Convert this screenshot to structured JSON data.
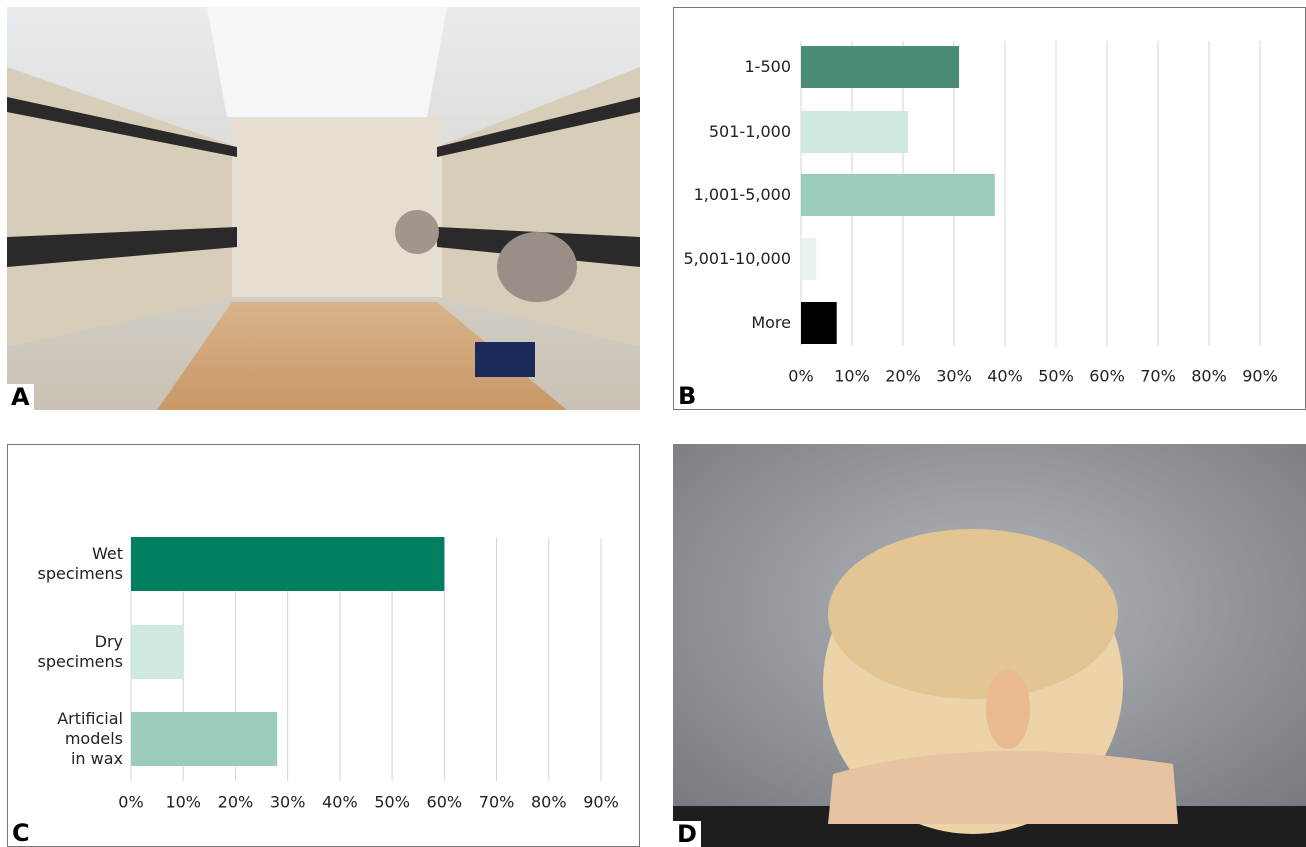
{
  "panel_labels": [
    "A",
    "B",
    "C",
    "D"
  ],
  "chart_data": [
    {
      "type": "bar",
      "orientation": "horizontal",
      "categories": [
        "1-500",
        "501-1,000",
        "1,001-5,000",
        "5,001-10,000",
        "More"
      ],
      "values": [
        31,
        21,
        38,
        3,
        7
      ],
      "colors": [
        "#4a8c75",
        "#cde9e2",
        "#9bcbb9",
        "#e5f2ef",
        "#000000"
      ],
      "xlim": [
        0,
        90
      ],
      "xticks": [
        {
          "value": 0,
          "label": "0%"
        },
        {
          "value": 10,
          "label": "10%"
        },
        {
          "value": 20,
          "label": "20%"
        },
        {
          "value": 30,
          "label": "30%"
        },
        {
          "value": 40,
          "label": "40%"
        },
        {
          "value": 50,
          "label": "50%"
        },
        {
          "value": 60,
          "label": "60%"
        },
        {
          "value": 70,
          "label": "70%"
        },
        {
          "value": 80,
          "label": "80%"
        },
        {
          "value": 90,
          "label": "90%"
        }
      ],
      "grid": true
    },
    {
      "type": "bar",
      "orientation": "horizontal",
      "categories": [
        "Wet\nspecimens",
        "Dry\nspecimens",
        "Artificial\nmodels\nin wax"
      ],
      "values": [
        60,
        10,
        28
      ],
      "colors": [
        "#007f5f",
        "#cde9e2",
        "#9bcbb9"
      ],
      "xlim": [
        0,
        90
      ],
      "xticks": [
        {
          "value": 0,
          "label": "0%"
        },
        {
          "value": 10,
          "label": "10%"
        },
        {
          "value": 20,
          "label": "20%"
        },
        {
          "value": 30,
          "label": "30%"
        },
        {
          "value": 40,
          "label": "40%"
        },
        {
          "value": 50,
          "label": "50%"
        },
        {
          "value": 60,
          "label": "60%"
        },
        {
          "value": 70,
          "label": "70%"
        },
        {
          "value": 80,
          "label": "80%"
        },
        {
          "value": 90,
          "label": "90%"
        }
      ],
      "grid": true
    }
  ]
}
